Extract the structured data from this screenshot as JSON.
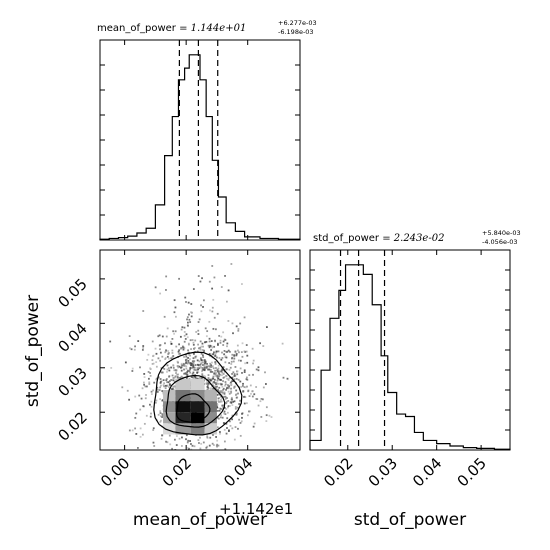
{
  "chart_data": {
    "type": "corner",
    "parameters": [
      "mean_of_power",
      "std_of_power"
    ],
    "axis_labels": {
      "x_lower_left": "mean_of_power",
      "y_lower_left": "std_of_power",
      "x_lower_right": "std_of_power"
    },
    "offset_label": "+1.142e1",
    "title_mean": {
      "name": "mean_of_power",
      "value": "1.144e+01",
      "plus": "+6.277e-03",
      "minus": "-6.198e-03"
    },
    "title_std": {
      "name": "std_of_power",
      "value": "2.243e-02",
      "plus": "+5.840e-03",
      "minus": "-4.056e-03"
    },
    "mean_xlim": [
      -0.008,
      0.057
    ],
    "std_lim": [
      0.0115,
      0.0565
    ],
    "mean_ticks": [
      0.0,
      0.02,
      0.04
    ],
    "mean_tick_labels": [
      "0.00",
      "0.02",
      "0.04"
    ],
    "std_ticks": [
      0.02,
      0.03,
      0.04,
      0.05
    ],
    "std_tick_labels": [
      "0.02",
      "0.03",
      "0.04",
      "0.05"
    ],
    "mean_quantiles": [
      0.0178,
      0.02398,
      0.03026
    ],
    "std_quantiles": [
      0.01837,
      0.02243,
      0.02827
    ],
    "mean_hist": {
      "edges": [
        -0.008,
        -0.005,
        -0.002,
        0.001,
        0.004,
        0.007,
        0.01,
        0.013,
        0.0155,
        0.0175,
        0.0195,
        0.021,
        0.0225,
        0.0245,
        0.0265,
        0.0285,
        0.0305,
        0.033,
        0.036,
        0.039,
        0.044,
        0.05,
        0.057
      ],
      "counts": [
        1,
        2,
        3,
        5,
        9,
        15,
        45,
        108,
        158,
        205,
        220,
        237,
        237,
        205,
        158,
        102,
        55,
        22,
        11,
        4,
        2,
        1
      ]
    },
    "std_hist": {
      "edges": [
        0.0115,
        0.014,
        0.016,
        0.018,
        0.0195,
        0.021,
        0.022,
        0.0235,
        0.0255,
        0.0275,
        0.029,
        0.031,
        0.033,
        0.035,
        0.037,
        0.04,
        0.043,
        0.046,
        0.049,
        0.053,
        0.0565
      ],
      "counts": [
        12,
        100,
        165,
        200,
        232,
        232,
        232,
        220,
        182,
        118,
        72,
        45,
        42,
        22,
        12,
        8,
        5,
        3,
        2,
        1
      ]
    },
    "density_cells": [
      {
        "x0": 0.0165,
        "x1": 0.0215,
        "y0": 0.0175,
        "y1": 0.02,
        "shade": 0.85
      },
      {
        "x0": 0.0215,
        "x1": 0.026,
        "y0": 0.0175,
        "y1": 0.02,
        "shade": 1.0
      },
      {
        "x0": 0.0165,
        "x1": 0.0215,
        "y0": 0.02,
        "y1": 0.0225,
        "shade": 0.95
      },
      {
        "x0": 0.0215,
        "x1": 0.026,
        "y0": 0.02,
        "y1": 0.0225,
        "shade": 0.9
      },
      {
        "x0": 0.026,
        "x1": 0.03,
        "y0": 0.02,
        "y1": 0.0225,
        "shade": 0.55
      },
      {
        "x0": 0.0125,
        "x1": 0.0165,
        "y0": 0.02,
        "y1": 0.0225,
        "shade": 0.45
      },
      {
        "x0": 0.0165,
        "x1": 0.0215,
        "y0": 0.0225,
        "y1": 0.025,
        "shade": 0.55
      },
      {
        "x0": 0.0215,
        "x1": 0.026,
        "y0": 0.0225,
        "y1": 0.025,
        "shade": 0.45
      },
      {
        "x0": 0.026,
        "x1": 0.03,
        "y0": 0.0225,
        "y1": 0.025,
        "shade": 0.3
      },
      {
        "x0": 0.0165,
        "x1": 0.0215,
        "y0": 0.015,
        "y1": 0.0175,
        "shade": 0.4
      },
      {
        "x0": 0.0215,
        "x1": 0.026,
        "y0": 0.015,
        "y1": 0.0175,
        "shade": 0.5
      },
      {
        "x0": 0.0125,
        "x1": 0.0165,
        "y0": 0.0175,
        "y1": 0.02,
        "shade": 0.35
      },
      {
        "x0": 0.026,
        "x1": 0.03,
        "y0": 0.0175,
        "y1": 0.02,
        "shade": 0.45
      },
      {
        "x0": 0.0125,
        "x1": 0.0165,
        "y0": 0.0225,
        "y1": 0.025,
        "shade": 0.25
      },
      {
        "x0": 0.0165,
        "x1": 0.0215,
        "y0": 0.025,
        "y1": 0.0275,
        "shade": 0.22
      },
      {
        "x0": 0.0215,
        "x1": 0.026,
        "y0": 0.025,
        "y1": 0.0275,
        "shade": 0.18
      },
      {
        "x0": 0.026,
        "x1": 0.03,
        "y0": 0.015,
        "y1": 0.0175,
        "shade": 0.2
      },
      {
        "x0": 0.0125,
        "x1": 0.0165,
        "y0": 0.015,
        "y1": 0.0175,
        "shade": 0.15
      }
    ],
    "contours": [
      {
        "cx": 0.022,
        "cy": 0.0208,
        "rx": 0.0053,
        "ry": 0.0032
      },
      {
        "cx": 0.0225,
        "cy": 0.0222,
        "rx": 0.0093,
        "ry": 0.0058
      },
      {
        "cx": 0.023,
        "cy": 0.0238,
        "rx": 0.014,
        "ry": 0.0093
      }
    ],
    "scatter": {
      "mean_center": 0.024,
      "mean_spread": 0.0085,
      "std_center": 0.0245,
      "std_spread": 0.0062,
      "count": 1500
    }
  }
}
